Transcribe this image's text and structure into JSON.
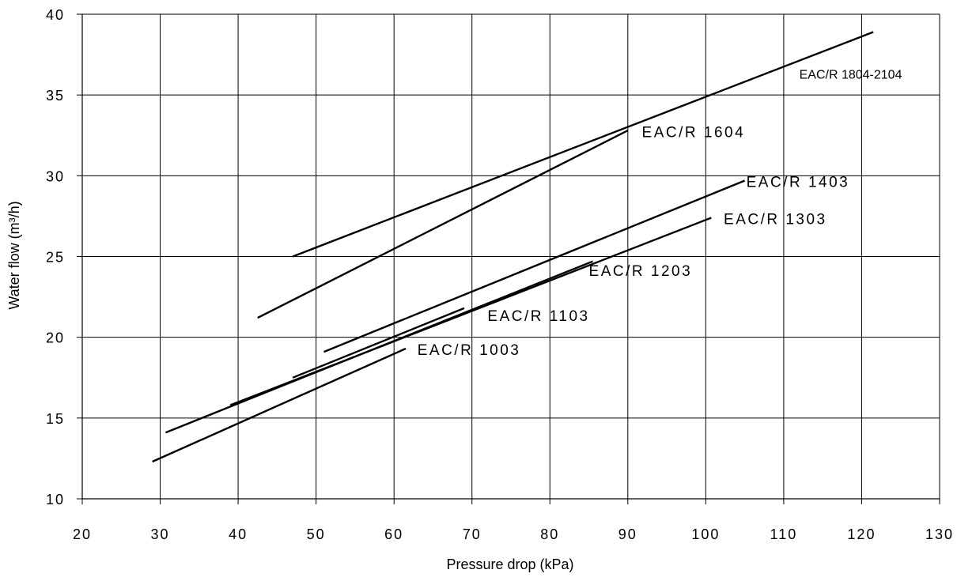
{
  "chart_data": {
    "type": "line",
    "title": "",
    "xlabel": "Pressure drop (kPa)",
    "ylabel": "Water flow (m³/h)",
    "xlim": [
      20,
      130
    ],
    "ylim": [
      10,
      40
    ],
    "x_ticks": [
      20,
      30,
      40,
      50,
      60,
      70,
      80,
      90,
      100,
      110,
      120,
      130
    ],
    "y_ticks": [
      10,
      15,
      20,
      25,
      30,
      35,
      40
    ],
    "grid": true,
    "legend": "none (series labeled inline)",
    "series": [
      {
        "name": "EAC/R 1003",
        "x": [
          29,
          61.5
        ],
        "y": [
          12.3,
          19.3
        ]
      },
      {
        "name": "EAC/R 1103",
        "x": [
          47,
          69
        ],
        "y": [
          17.5,
          21.8
        ]
      },
      {
        "name": "EAC/R 1203",
        "x": [
          30.7,
          85.5
        ],
        "y": [
          14.1,
          24.7
        ]
      },
      {
        "name": "EAC/R 1303",
        "x": [
          39,
          100.7
        ],
        "y": [
          15.8,
          27.4
        ]
      },
      {
        "name": "EAC/R 1403",
        "x": [
          51,
          105
        ],
        "y": [
          19.1,
          29.7
        ]
      },
      {
        "name": "EAC/R 1604",
        "x": [
          42.5,
          90
        ],
        "y": [
          21.2,
          32.8
        ]
      },
      {
        "name": "EAC/R 1804-2104",
        "x": [
          47,
          121.5
        ],
        "y": [
          25.0,
          38.9
        ]
      }
    ],
    "annotations": [
      {
        "text": "EAC/R 1003",
        "x": 63,
        "y": 18.9
      },
      {
        "text": "EAC/R 1103",
        "x": 72,
        "y": 21.0
      },
      {
        "text": "EAC/R 1203",
        "x": 85,
        "y": 23.8
      },
      {
        "text": "EAC/R 1303",
        "x": 102.3,
        "y": 27.0
      },
      {
        "text": "EAC/R 1403",
        "x": 105.2,
        "y": 29.3
      },
      {
        "text": "EAC/R 1604",
        "x": 91.8,
        "y": 32.4
      },
      {
        "text": "EAC/R 1804-2104",
        "x": 112,
        "y": 36.0,
        "small": true
      }
    ]
  }
}
